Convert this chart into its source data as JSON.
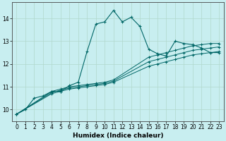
{
  "xlabel": "Humidex (Indice chaleur)",
  "bg_color": "#c8eef0",
  "grid_color": "#b0d8cc",
  "line_color": "#006666",
  "xlim": [
    -0.5,
    23.5
  ],
  "ylim": [
    9.5,
    14.7
  ],
  "yticks": [
    10,
    11,
    12,
    13,
    14
  ],
  "xticks": [
    0,
    1,
    2,
    3,
    4,
    5,
    6,
    7,
    8,
    9,
    10,
    11,
    12,
    13,
    14,
    15,
    16,
    17,
    18,
    19,
    20,
    21,
    22,
    23
  ],
  "series": [
    {
      "x": [
        0,
        1,
        2,
        3,
        4,
        5,
        6,
        7,
        8,
        9,
        10,
        11,
        12,
        13,
        14,
        15,
        16,
        17,
        18,
        19,
        20,
        21,
        22,
        23
      ],
      "y": [
        9.8,
        10.0,
        10.5,
        10.6,
        10.8,
        10.8,
        11.05,
        11.2,
        12.55,
        13.75,
        13.85,
        14.35,
        13.85,
        14.05,
        13.65,
        12.65,
        12.45,
        12.35,
        13.0,
        12.9,
        12.85,
        12.7,
        12.5,
        12.5
      ]
    },
    {
      "x": [
        0,
        4,
        5,
        6,
        7,
        8,
        9,
        10,
        11,
        15,
        16,
        17,
        18,
        19,
        20,
        21,
        22,
        23
      ],
      "y": [
        9.8,
        10.8,
        10.9,
        11.0,
        11.05,
        11.1,
        11.15,
        11.2,
        11.3,
        12.3,
        12.4,
        12.5,
        12.6,
        12.7,
        12.8,
        12.85,
        12.9,
        12.9
      ]
    },
    {
      "x": [
        0,
        4,
        5,
        6,
        7,
        8,
        9,
        10,
        11,
        15,
        16,
        17,
        18,
        19,
        20,
        21,
        22,
        23
      ],
      "y": [
        9.8,
        10.75,
        10.85,
        10.95,
        11.0,
        11.05,
        11.1,
        11.15,
        11.25,
        12.1,
        12.2,
        12.3,
        12.4,
        12.5,
        12.6,
        12.65,
        12.7,
        12.75
      ]
    },
    {
      "x": [
        0,
        4,
        5,
        6,
        7,
        8,
        9,
        10,
        11,
        15,
        16,
        17,
        18,
        19,
        20,
        21,
        22,
        23
      ],
      "y": [
        9.8,
        10.7,
        10.8,
        10.9,
        10.95,
        11.0,
        11.05,
        11.1,
        11.2,
        11.9,
        12.0,
        12.1,
        12.2,
        12.3,
        12.4,
        12.45,
        12.5,
        12.55
      ]
    }
  ]
}
